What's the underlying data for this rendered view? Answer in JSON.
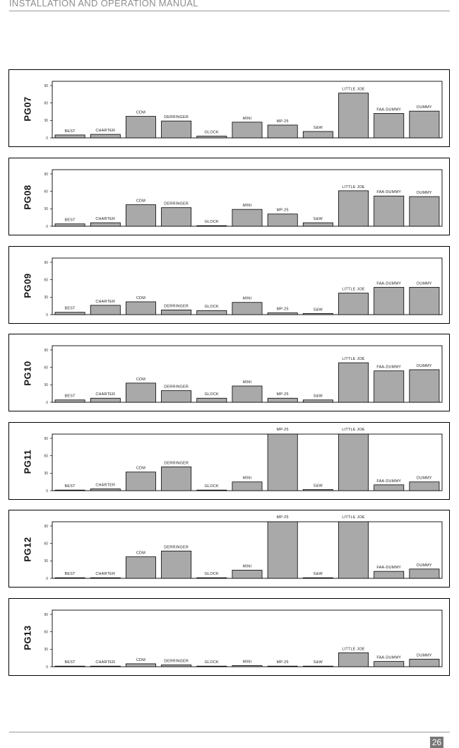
{
  "header": {
    "title": "INSTALLATION AND OPERATION MANUAL"
  },
  "footer": {
    "page_number": "26"
  },
  "chart_data": [
    {
      "type": "bar",
      "title": "PG07",
      "categories": [
        "BEST",
        "CHARTER",
        "CDM",
        "DERRINGER",
        "GLOCK",
        "MINI",
        "MP-25",
        "S&W",
        "LITTLE JOE",
        "FAA-DUMMY",
        "DUMMY"
      ],
      "values": [
        5,
        6,
        37,
        29,
        3,
        27,
        22,
        11,
        77,
        42,
        46
      ],
      "yticks": [
        "0",
        "30",
        "60",
        "90"
      ],
      "ylim": [
        0,
        90
      ]
    },
    {
      "type": "bar",
      "title": "PG08",
      "categories": [
        "BEST",
        "CHARTER",
        "CDM",
        "DERRINGER",
        "GLOCK",
        "MINI",
        "MP-25",
        "S&W",
        "LITTLE JOE",
        "FAA-DUMMY",
        "DUMMY"
      ],
      "values": [
        4,
        6,
        37,
        32,
        1,
        29,
        21,
        6,
        61,
        52,
        51
      ],
      "yticks": [
        "0",
        "30",
        "60",
        "90"
      ],
      "ylim": [
        0,
        90
      ]
    },
    {
      "type": "bar",
      "title": "PG09",
      "categories": [
        "BEST",
        "CHARTER",
        "CDM",
        "DERRINGER",
        "GLOCK",
        "MINI",
        "MP-25",
        "S&W",
        "LITTLE JOE",
        "FAA-DUMMY",
        "DUMMY"
      ],
      "values": [
        4,
        16,
        22,
        8,
        7,
        21,
        3,
        2,
        37,
        47,
        47
      ],
      "yticks": [
        "0",
        "30",
        "60",
        "90"
      ],
      "ylim": [
        0,
        90
      ]
    },
    {
      "type": "bar",
      "title": "PG10",
      "categories": [
        "BEST",
        "CHARTER",
        "CDM",
        "DERRINGER",
        "GLOCK",
        "MINI",
        "MP-25",
        "S&W",
        "LITTLE JOE",
        "FAA-DUMMY",
        "DUMMY"
      ],
      "values": [
        4,
        7,
        33,
        20,
        7,
        28,
        7,
        4,
        68,
        54,
        56
      ],
      "yticks": [
        "0",
        "30",
        "60",
        "90"
      ],
      "ylim": [
        0,
        90
      ]
    },
    {
      "type": "bar",
      "title": "PG11",
      "categories": [
        "BEST",
        "CHARTER",
        "CDM",
        "DERRINGER",
        "GLOCK",
        "MINI",
        "MP-25",
        "S&W",
        "LITTLE JOE",
        "FAA-DUMMY",
        "DUMMY"
      ],
      "values": [
        1,
        3,
        32,
        41,
        1,
        15,
        100,
        2,
        100,
        10,
        15
      ],
      "yticks": [
        "0",
        "30",
        "60",
        "90"
      ],
      "ylim": [
        0,
        90
      ]
    },
    {
      "type": "bar",
      "title": "PG12",
      "categories": [
        "BEST",
        "CHARTER",
        "CDM",
        "DERRINGER",
        "GLOCK",
        "MINI",
        "MP-25",
        "S&W",
        "LITTLE JOE",
        "FAA-DUMMY",
        "DUMMY"
      ],
      "values": [
        1,
        1,
        37,
        47,
        1,
        14,
        100,
        1,
        100,
        12,
        16
      ],
      "yticks": [
        "0",
        "30",
        "60",
        "90"
      ],
      "ylim": [
        0,
        90
      ]
    },
    {
      "type": "bar",
      "title": "PG13",
      "categories": [
        "BEST",
        "CHARTER",
        "CDM",
        "DERRINGER",
        "GLOCK",
        "MINI",
        "MP-25",
        "S&W",
        "LITTLE JOE",
        "FAA-DUMMY",
        "DUMMY"
      ],
      "values": [
        1,
        1,
        5,
        3,
        1,
        2,
        1,
        1,
        24,
        9,
        13
      ],
      "yticks": [
        "0",
        "30",
        "60",
        "90"
      ],
      "ylim": [
        0,
        90
      ]
    }
  ]
}
